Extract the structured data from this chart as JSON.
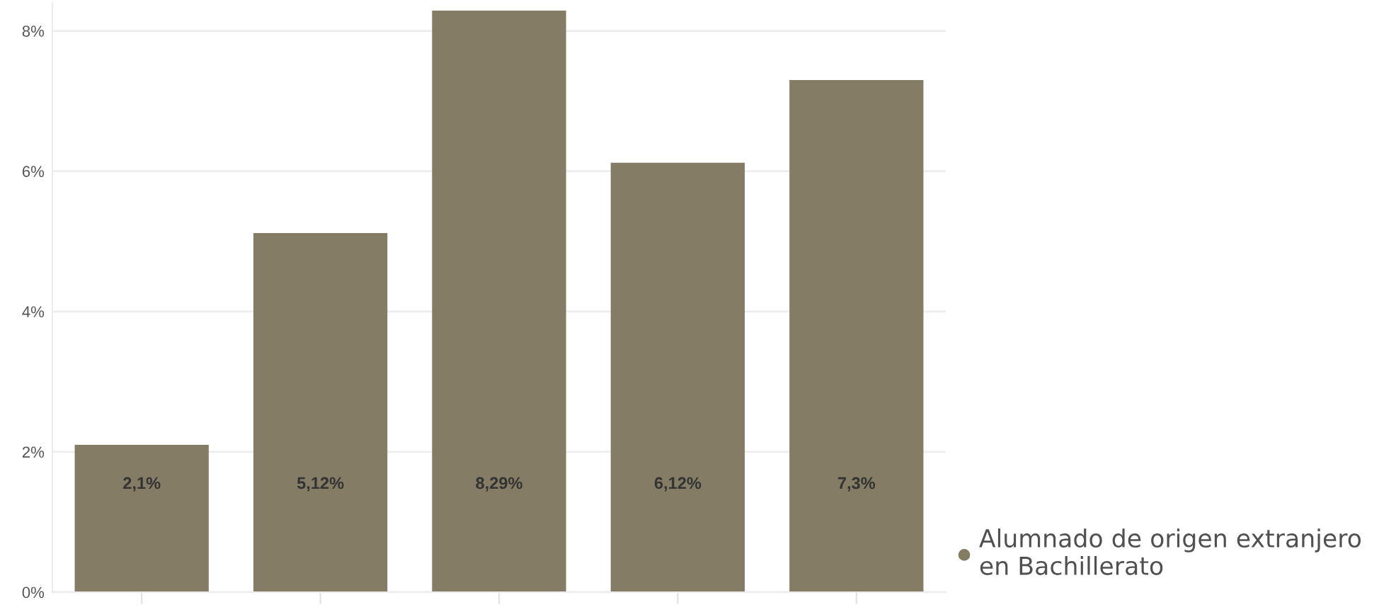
{
  "chart_data": {
    "type": "bar",
    "categories": [
      null,
      null,
      null,
      null,
      null
    ],
    "series": [
      {
        "name": "Alumnado de origen extranjero en Bachillerato",
        "color": "#847c64",
        "values": [
          2.1,
          5.12,
          8.29,
          6.12,
          7.3
        ],
        "value_labels": [
          "2,1%",
          "5,12%",
          "8,29%",
          "6,12%",
          "7,3%"
        ]
      }
    ],
    "ylim": [
      0,
      8.4
    ],
    "yticks": [
      {
        "value": 0,
        "label": "0%"
      },
      {
        "value": 2,
        "label": "2%"
      },
      {
        "value": 4,
        "label": "4%"
      },
      {
        "value": 6,
        "label": "6%"
      },
      {
        "value": 8,
        "label": "8%"
      }
    ],
    "grid": "y",
    "legend": "bottom right"
  }
}
